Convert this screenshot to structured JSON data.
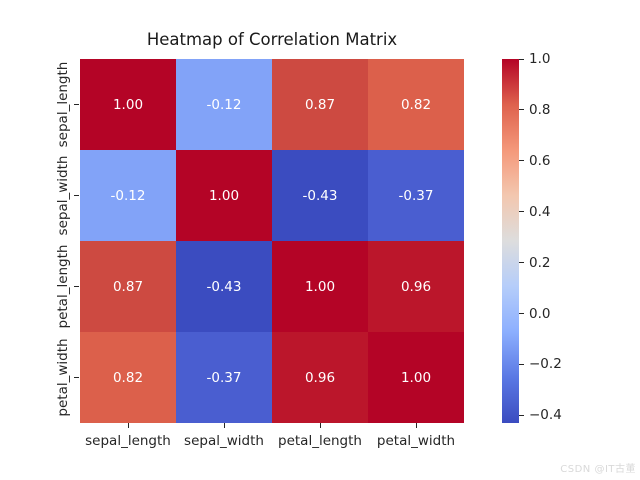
{
  "figure": {
    "title": "Heatmap of Correlation Matrix",
    "watermark": "CSDN @IT古董",
    "background_color": "#ffffff"
  },
  "chart_data": {
    "type": "heatmap",
    "title": "Heatmap of Correlation Matrix",
    "categories": [
      "sepal_length",
      "sepal_width",
      "petal_length",
      "petal_width"
    ],
    "x_tick_labels": [
      "sepal_length",
      "sepal_width",
      "petal_length",
      "petal_width"
    ],
    "y_tick_labels": [
      "sepal_length",
      "sepal_width",
      "petal_length",
      "petal_width"
    ],
    "matrix": [
      [
        1.0,
        -0.12,
        0.87,
        0.82
      ],
      [
        -0.12,
        1.0,
        -0.43,
        -0.37
      ],
      [
        0.87,
        -0.43,
        1.0,
        0.96
      ],
      [
        0.82,
        -0.37,
        0.96,
        1.0
      ]
    ],
    "cell_labels": [
      [
        "1.00",
        "-0.12",
        "0.87",
        "0.82"
      ],
      [
        "-0.12",
        "1.00",
        "-0.43",
        "-0.37"
      ],
      [
        "0.87",
        "-0.43",
        "1.00",
        "0.96"
      ],
      [
        "0.82",
        "-0.37",
        "0.96",
        "1.00"
      ]
    ],
    "cell_colors": [
      [
        "#b40426",
        "#82a3f8",
        "#cd4a41",
        "#dc604b"
      ],
      [
        "#82a3f8",
        "#b40426",
        "#3b4cc0",
        "#4a5ed0"
      ],
      [
        "#cd4a41",
        "#3b4cc0",
        "#b40426",
        "#bb162b"
      ],
      [
        "#dc604b",
        "#4a5ed0",
        "#bb162b",
        "#b40426"
      ]
    ],
    "annotation_text_color": "#ffffff",
    "colormap": "coolwarm",
    "vmin": -0.43,
    "vmax": 1.0,
    "grid": false,
    "colorbar": {
      "position": "right",
      "ticks": [
        {
          "value": 1.0,
          "label": "1.0"
        },
        {
          "value": 0.8,
          "label": "0.8"
        },
        {
          "value": 0.6,
          "label": "0.6"
        },
        {
          "value": 0.4,
          "label": "0.4"
        },
        {
          "value": 0.2,
          "label": "0.2"
        },
        {
          "value": 0.0,
          "label": "0.0"
        },
        {
          "value": -0.2,
          "label": "−0.2"
        },
        {
          "value": -0.4,
          "label": "−0.4"
        }
      ],
      "gradient_stops": [
        {
          "pos": 0,
          "color": "#b40426"
        },
        {
          "pos": 12.5,
          "color": "#de614d"
        },
        {
          "pos": 25,
          "color": "#f4987a"
        },
        {
          "pos": 37.5,
          "color": "#f3c7af"
        },
        {
          "pos": 50,
          "color": "#dddddd"
        },
        {
          "pos": 62.5,
          "color": "#b5cdfa"
        },
        {
          "pos": 75,
          "color": "#8caffe"
        },
        {
          "pos": 87.5,
          "color": "#5a78e4"
        },
        {
          "pos": 100,
          "color": "#3b4cc0"
        }
      ]
    }
  }
}
